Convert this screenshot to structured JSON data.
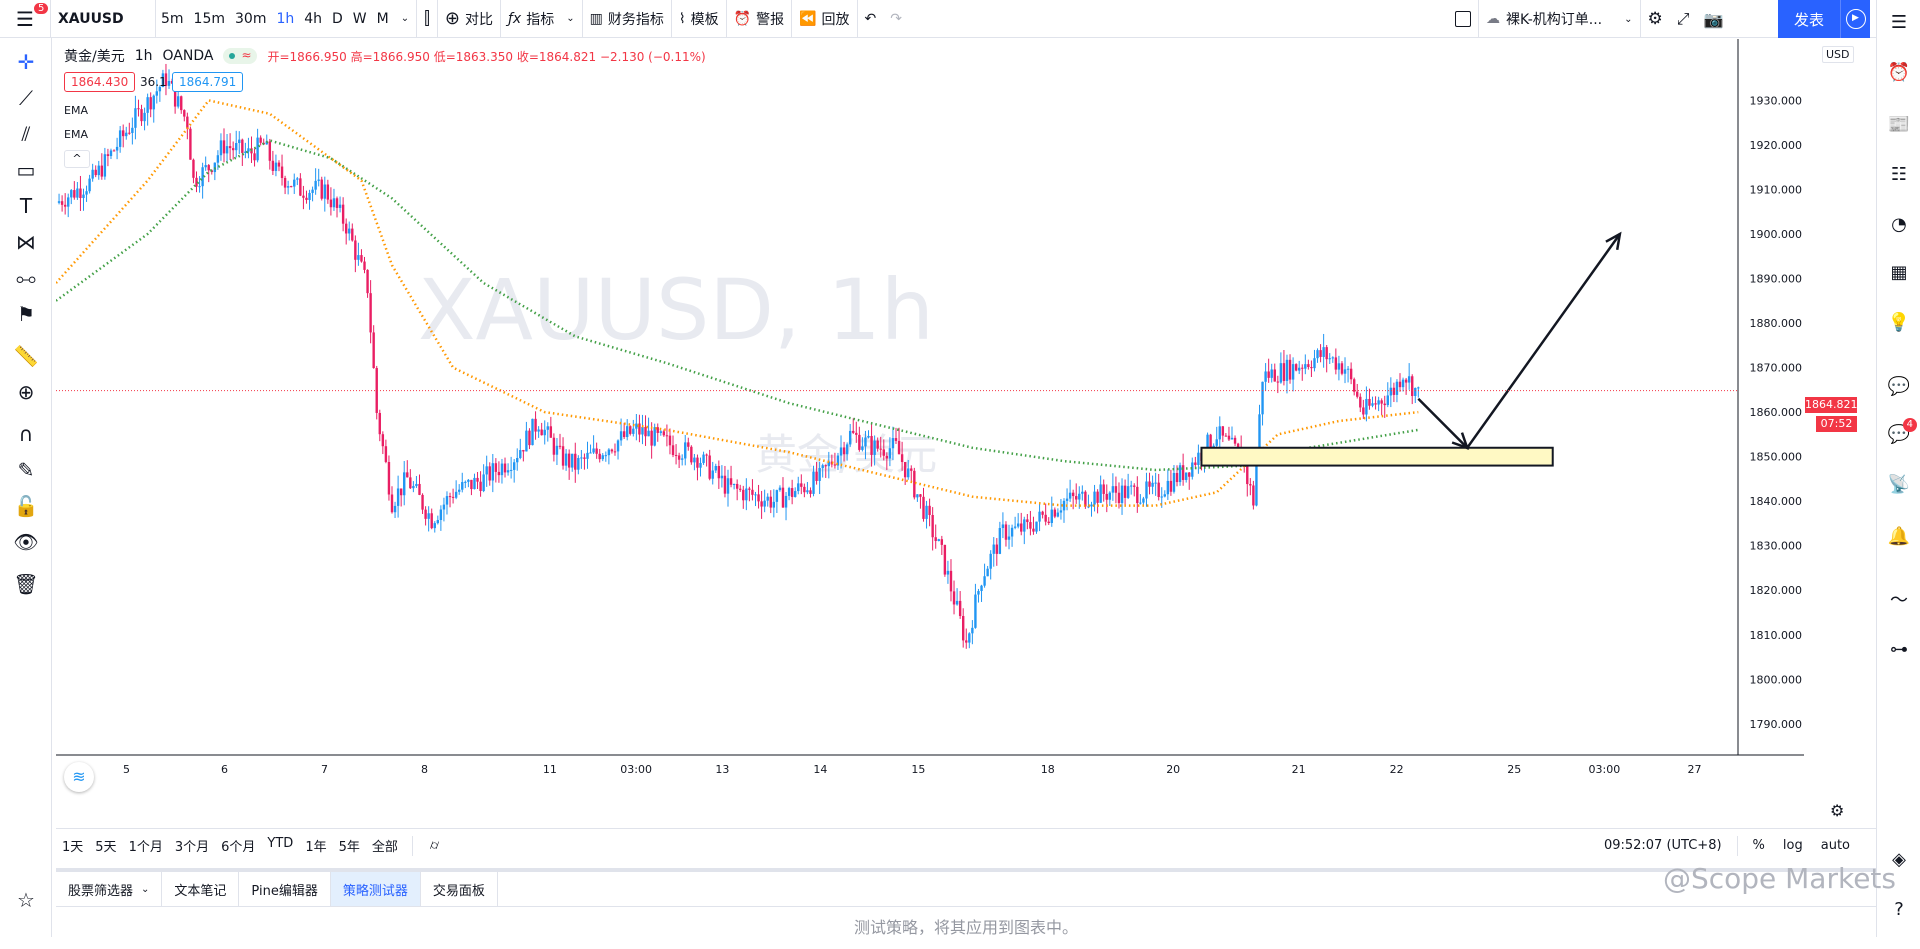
{
  "topbar": {
    "symbol": "XAUUSD",
    "notif_badge": "5",
    "intervals": [
      "5m",
      "15m",
      "30m",
      "1h",
      "4h",
      "D",
      "W",
      "M"
    ],
    "active_interval": "1h",
    "compare": "对比",
    "indicators": "指标",
    "financials": "财务指标",
    "templates": "模板",
    "alert": "警报",
    "replay": "回放",
    "layout_name": "裸K-机构订单...",
    "publish": "发表"
  },
  "legend": {
    "symbol_name": "黄金/美元",
    "interval": "1h",
    "broker": "OANDA",
    "ohlc": "开=1866.950 高=1866.950 低=1863.350 收=1864.821 −2.130 (−0.11%)",
    "bid": "1864.430",
    "spread": "36.1",
    "ask": "1864.791",
    "ema1": "EMA",
    "ema2": "EMA"
  },
  "chart_data": {
    "type": "candlestick",
    "title": "XAUUSD, 1h",
    "watermark_sub": "黄金/美元",
    "currency": "USD",
    "ylim": [
      1783,
      1942
    ],
    "y_ticks": [
      "1930.000",
      "1920.000",
      "1910.000",
      "1900.000",
      "1890.000",
      "1880.000",
      "1870.000",
      "1860.000",
      "1850.000",
      "1840.000",
      "1830.000",
      "1820.000",
      "1810.000",
      "1800.000",
      "1790.000"
    ],
    "y_tick_values": [
      1930,
      1920,
      1910,
      1900,
      1890,
      1880,
      1870,
      1860,
      1850,
      1840,
      1830,
      1820,
      1810,
      1800,
      1790
    ],
    "x_ticks": [
      "5",
      "6",
      "7",
      "8",
      "11",
      "03:00",
      "13",
      "14",
      "15",
      "18",
      "20",
      "21",
      "22",
      "25",
      "03:00",
      "27"
    ],
    "current_price": "1864.821",
    "countdown": "07:52",
    "close_path": [
      [
        0,
        1907
      ],
      [
        12,
        1912
      ],
      [
        25,
        1925
      ],
      [
        36,
        1935
      ],
      [
        43,
        1925
      ],
      [
        45,
        1912
      ],
      [
        50,
        1915
      ],
      [
        55,
        1920
      ],
      [
        63,
        1918
      ],
      [
        68,
        1920
      ],
      [
        72,
        1914
      ],
      [
        80,
        1910
      ],
      [
        85,
        1910
      ],
      [
        88,
        1910
      ],
      [
        95,
        1902
      ],
      [
        102,
        1888
      ],
      [
        105,
        1860
      ],
      [
        110,
        1840
      ],
      [
        115,
        1845
      ],
      [
        123,
        1836
      ],
      [
        130,
        1842
      ],
      [
        140,
        1845
      ],
      [
        150,
        1850
      ],
      [
        158,
        1858
      ],
      [
        165,
        1850
      ],
      [
        170,
        1848
      ],
      [
        180,
        1852
      ],
      [
        190,
        1856
      ],
      [
        200,
        1853
      ],
      [
        210,
        1850
      ],
      [
        220,
        1843
      ],
      [
        235,
        1840
      ],
      [
        250,
        1845
      ],
      [
        260,
        1855
      ],
      [
        268,
        1852
      ],
      [
        275,
        1852
      ],
      [
        283,
        1840
      ],
      [
        290,
        1828
      ],
      [
        298,
        1808
      ],
      [
        303,
        1823
      ],
      [
        310,
        1833
      ],
      [
        318,
        1834
      ],
      [
        330,
        1840
      ],
      [
        345,
        1842
      ],
      [
        360,
        1842
      ],
      [
        370,
        1847
      ],
      [
        380,
        1855
      ],
      [
        388,
        1850
      ],
      [
        392,
        1840
      ],
      [
        395,
        1868
      ],
      [
        405,
        1870
      ],
      [
        415,
        1873
      ],
      [
        422,
        1870
      ],
      [
        428,
        1860
      ],
      [
        438,
        1865
      ],
      [
        441,
        1869
      ],
      [
        446,
        1864
      ]
    ],
    "close_path_t_range": [
      0,
      550
    ],
    "ema_fast": [
      [
        0,
        1889
      ],
      [
        30,
        1912
      ],
      [
        50,
        1930
      ],
      [
        70,
        1927
      ],
      [
        88,
        1918
      ],
      [
        100,
        1912
      ],
      [
        110,
        1893
      ],
      [
        130,
        1870
      ],
      [
        160,
        1860
      ],
      [
        200,
        1856
      ],
      [
        240,
        1851
      ],
      [
        270,
        1846
      ],
      [
        300,
        1841
      ],
      [
        330,
        1839
      ],
      [
        360,
        1839
      ],
      [
        380,
        1842
      ],
      [
        400,
        1855
      ],
      [
        420,
        1858
      ],
      [
        446,
        1860
      ]
    ],
    "ema_slow": [
      [
        0,
        1885
      ],
      [
        30,
        1900
      ],
      [
        50,
        1914
      ],
      [
        70,
        1921
      ],
      [
        90,
        1917
      ],
      [
        110,
        1908
      ],
      [
        140,
        1889
      ],
      [
        170,
        1877
      ],
      [
        200,
        1871
      ],
      [
        240,
        1862
      ],
      [
        270,
        1857
      ],
      [
        300,
        1852
      ],
      [
        330,
        1849
      ],
      [
        360,
        1847
      ],
      [
        390,
        1848
      ],
      [
        410,
        1852
      ],
      [
        446,
        1856
      ]
    ],
    "zone": {
      "from": 1848,
      "to": 1852,
      "t_start": 375,
      "t_end": 490
    },
    "projection": [
      [
        446,
        1863
      ],
      [
        462,
        1852
      ],
      [
        512,
        1900
      ]
    ],
    "projection_arrow": [
      [
        512,
        1900
      ],
      [
        514,
        1897
      ]
    ]
  },
  "bottom": {
    "ranges": [
      "1天",
      "5天",
      "1个月",
      "3个月",
      "6个月",
      "YTD",
      "1年",
      "5年",
      "全部"
    ],
    "clock": "09:52:07 (UTC+8)",
    "percent": "%",
    "log": "log",
    "auto": "auto"
  },
  "tabs": [
    "股票筛选器",
    "文本笔记",
    "Pine编辑器",
    "策略测试器",
    "交易面板"
  ],
  "active_tab": "策略测试器",
  "hint": "测试策略，将其应用到图表中。",
  "watermark_brand": "@Scope Markets",
  "right_badge": "4",
  "colors": {
    "up": "#2196f3",
    "down": "#e91e63",
    "ema_fast": "#ff9800",
    "ema_slow": "#43a047",
    "accent": "#2962ff",
    "zone": "#fff9c4"
  }
}
